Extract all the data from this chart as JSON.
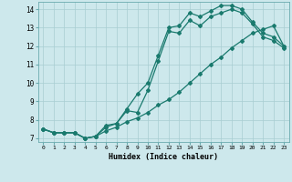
{
  "xlabel": "Humidex (Indice chaleur)",
  "xlim": [
    -0.5,
    23.5
  ],
  "ylim": [
    6.8,
    14.4
  ],
  "yticks": [
    7,
    8,
    9,
    10,
    11,
    12,
    13,
    14
  ],
  "xticks": [
    0,
    1,
    2,
    3,
    4,
    5,
    6,
    7,
    8,
    9,
    10,
    11,
    12,
    13,
    14,
    15,
    16,
    17,
    18,
    19,
    20,
    21,
    22,
    23
  ],
  "bg_color": "#cde8ec",
  "line_color": "#1a7a6e",
  "grid_color": "#a8cdd2",
  "series1": [
    7.5,
    7.3,
    7.3,
    7.3,
    7.0,
    7.1,
    7.7,
    7.8,
    8.6,
    9.4,
    10.0,
    11.5,
    13.0,
    13.1,
    13.8,
    13.6,
    13.9,
    14.2,
    14.2,
    14.0,
    13.3,
    12.7,
    12.5,
    12.0
  ],
  "series2": [
    7.5,
    7.3,
    7.3,
    7.3,
    7.0,
    7.1,
    7.6,
    7.8,
    8.5,
    8.4,
    9.6,
    11.2,
    12.8,
    12.7,
    13.4,
    13.1,
    13.6,
    13.8,
    14.0,
    13.8,
    13.2,
    12.5,
    12.3,
    11.9
  ],
  "series3": [
    7.5,
    7.3,
    7.3,
    7.3,
    7.0,
    7.1,
    7.4,
    7.6,
    7.9,
    8.1,
    8.4,
    8.8,
    9.1,
    9.5,
    10.0,
    10.5,
    11.0,
    11.4,
    11.9,
    12.3,
    12.7,
    12.9,
    13.1,
    12.0
  ]
}
